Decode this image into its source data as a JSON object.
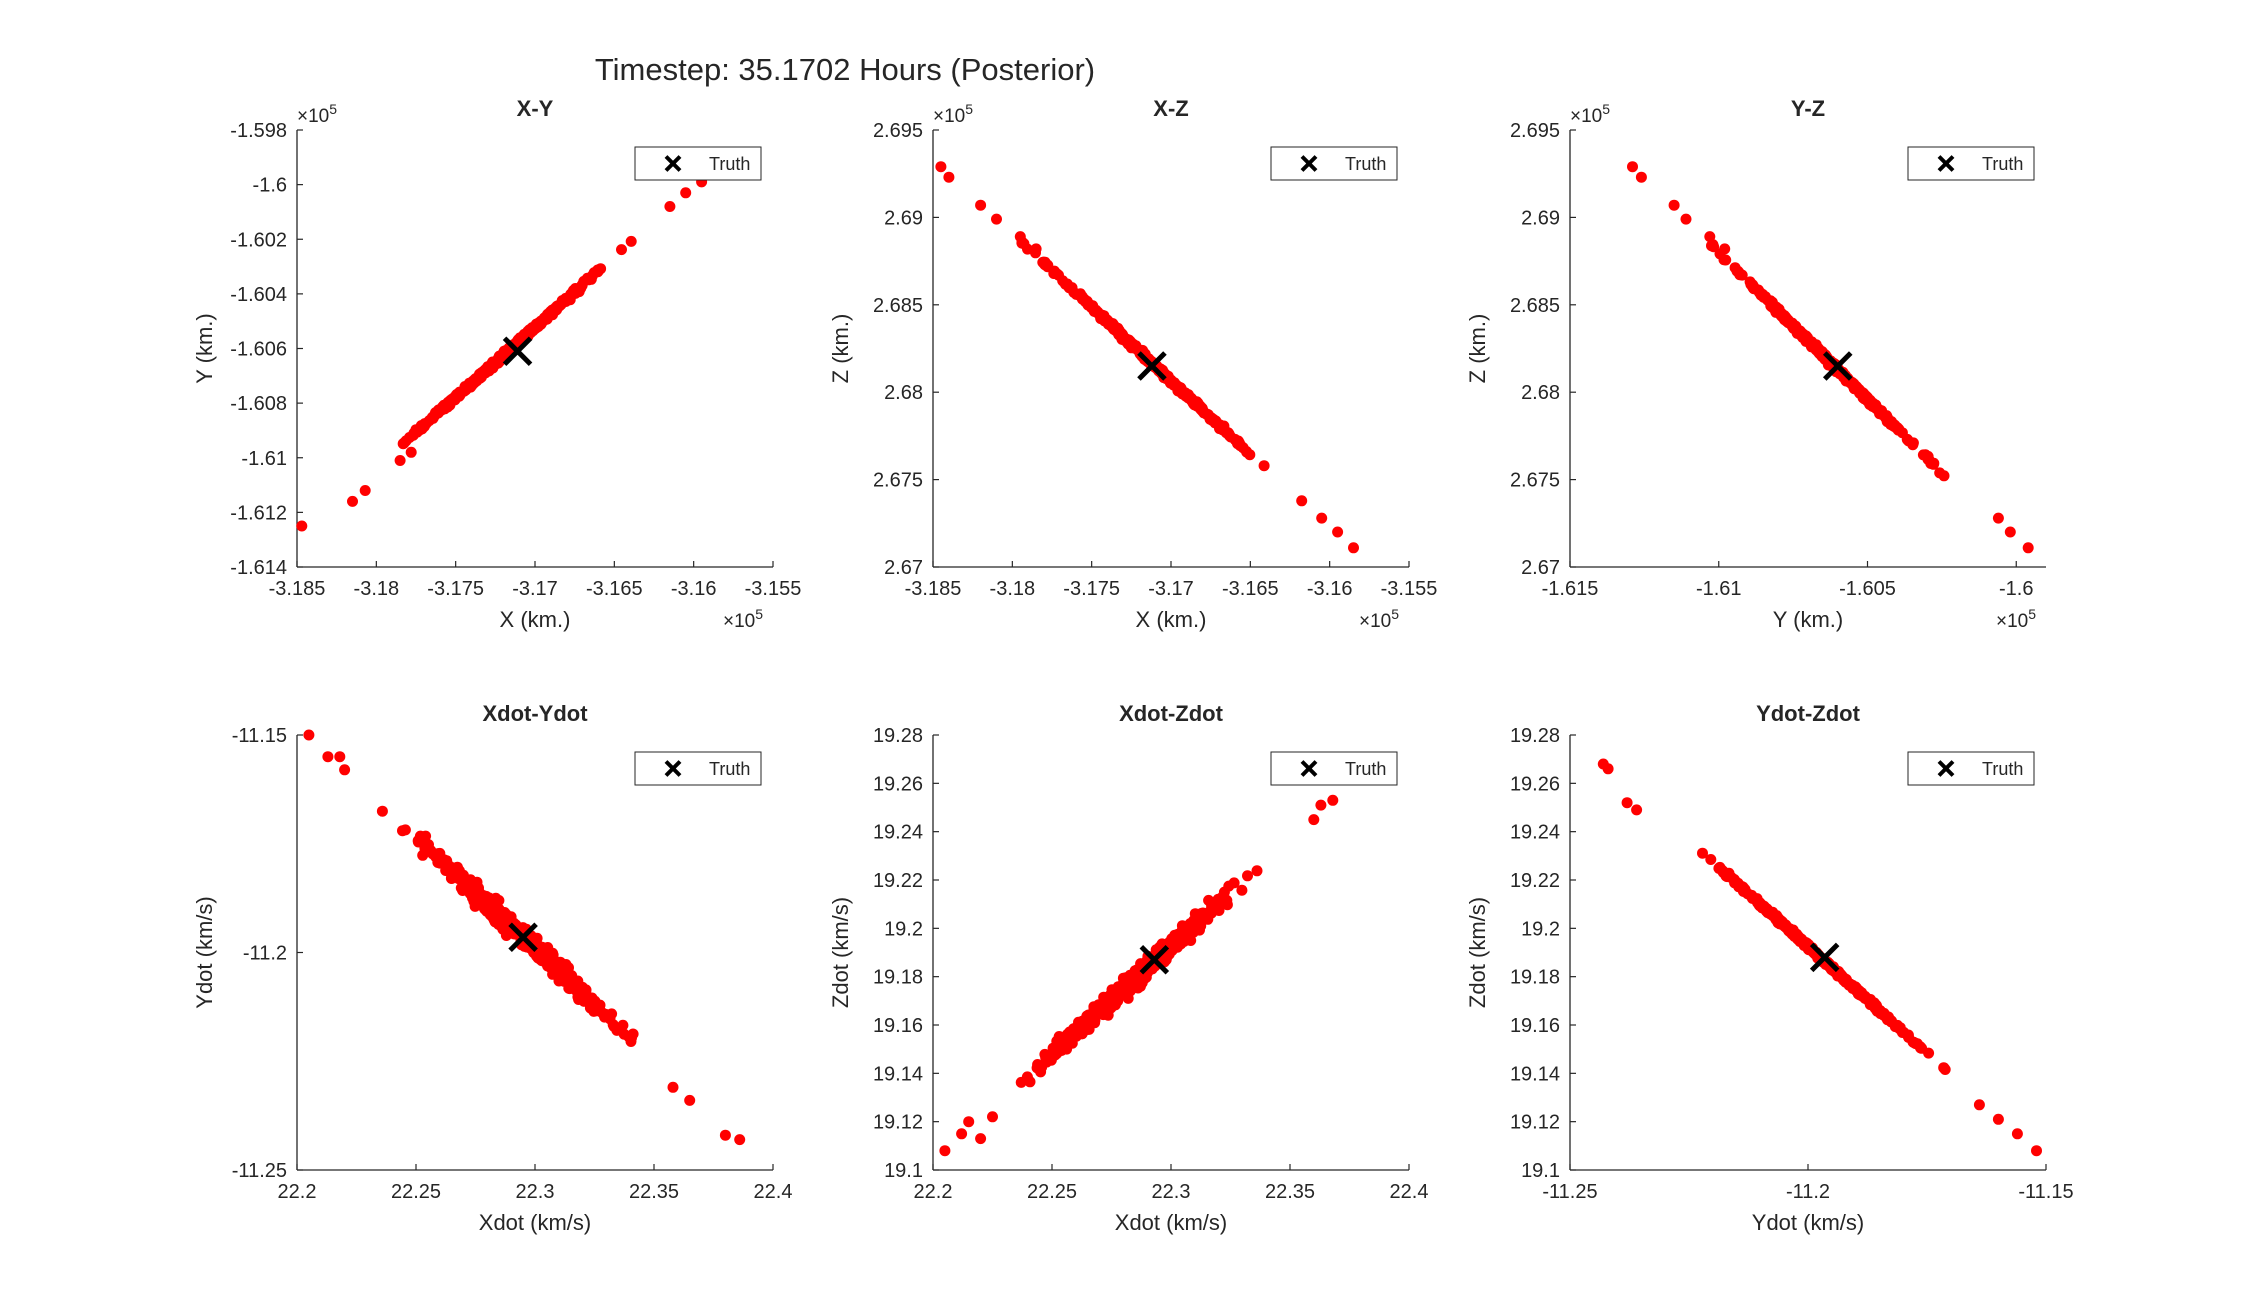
{
  "figure": {
    "title": "Timestep: 35.1702 Hours (Posterior)"
  },
  "colors": {
    "samples": "#ff0000",
    "truth": "#000000",
    "axis": "#262626"
  },
  "icons": {
    "truth_marker": "x-marker-icon"
  },
  "chart_data": [
    {
      "type": "scatter",
      "title": "X-Y",
      "xlabel": "X (km.)",
      "ylabel": "Y (km.)",
      "xlim": [
        -318500,
        -315500
      ],
      "ylim": [
        -161400,
        -159800
      ],
      "xticks": [
        -318500,
        -318000,
        -317500,
        -317000,
        -316500,
        -316000,
        -315500
      ],
      "xtick_labels": [
        "-3.185",
        "-3.18",
        "-3.175",
        "-3.17",
        "-3.165",
        "-3.16",
        "-3.155"
      ],
      "yticks": [
        -161400,
        -161200,
        -161000,
        -160800,
        -160600,
        -160400,
        -160200,
        -160000,
        -159800
      ],
      "ytick_labels": [
        "-1.614",
        "-1.612",
        "-1.61",
        "-1.608",
        "-1.606",
        "-1.604",
        "-1.602",
        "-1.6",
        "-1.598"
      ],
      "x_exponent": "×10",
      "x_exponent_power": "5",
      "y_exponent": "×10",
      "y_exponent_power": "5",
      "truth": [
        -317110,
        -160610
      ],
      "line": {
        "from": [
          -318500,
          -161290
        ],
        "to": [
          -315900,
          -159960
        ]
      },
      "outliers": [
        [
          -318470,
          -161250
        ],
        [
          -318150,
          -161160
        ],
        [
          -318070,
          -161120
        ],
        [
          -317850,
          -161010
        ],
        [
          -317780,
          -160980
        ],
        [
          -315950,
          -159990
        ],
        [
          -316050,
          -160030
        ],
        [
          -316150,
          -160080
        ]
      ],
      "spread": 25,
      "series": [
        {
          "name": "",
          "points": []
        }
      ],
      "legend": {
        "entries": [
          "Truth"
        ],
        "position": "top-right"
      }
    },
    {
      "type": "scatter",
      "title": "X-Z",
      "xlabel": "X (km.)",
      "ylabel": "Z (km.)",
      "xlim": [
        -318500,
        -315500
      ],
      "ylim": [
        267000,
        269500
      ],
      "xticks": [
        -318500,
        -318000,
        -317500,
        -317000,
        -316500,
        -316000,
        -315500
      ],
      "xtick_labels": [
        "-3.185",
        "-3.18",
        "-3.175",
        "-3.17",
        "-3.165",
        "-3.16",
        "-3.155"
      ],
      "yticks": [
        267000,
        267500,
        268000,
        268500,
        269000,
        269500
      ],
      "ytick_labels": [
        "2.67",
        "2.675",
        "2.68",
        "2.685",
        "2.69",
        "2.695"
      ],
      "x_exponent": "×10",
      "x_exponent_power": "5",
      "y_exponent": "×10",
      "y_exponent_power": "5",
      "truth": [
        -317120,
        268150
      ],
      "line": {
        "from": [
          -318450,
          269290
        ],
        "to": [
          -315800,
          267050
        ]
      },
      "outliers": [
        [
          -318450,
          269290
        ],
        [
          -318400,
          269230
        ],
        [
          -318200,
          269070
        ],
        [
          -318100,
          268990
        ],
        [
          -317950,
          268890
        ],
        [
          -317850,
          268820
        ],
        [
          -316050,
          267280
        ],
        [
          -315950,
          267200
        ],
        [
          -315850,
          267110
        ]
      ],
      "spread": 25,
      "series": [
        {
          "name": "",
          "points": []
        }
      ],
      "legend": {
        "entries": [
          "Truth"
        ],
        "position": "top-right"
      }
    },
    {
      "type": "scatter",
      "title": "Y-Z",
      "xlabel": "Y (km.)",
      "ylabel": "Z (km.)",
      "xlim": [
        -161500,
        -159900
      ],
      "ylim": [
        267000,
        269500
      ],
      "xticks": [
        -161500,
        -161000,
        -160500,
        -160000
      ],
      "xtick_labels": [
        "-1.615",
        "-1.61",
        "-1.605",
        "-1.6"
      ],
      "yticks": [
        267000,
        267500,
        268000,
        268500,
        269000,
        269500
      ],
      "ytick_labels": [
        "2.67",
        "2.675",
        "2.68",
        "2.685",
        "2.69",
        "2.695"
      ],
      "x_exponent": "×10",
      "x_exponent_power": "5",
      "y_exponent": "×10",
      "y_exponent_power": "5",
      "truth": [
        -160600,
        268150
      ],
      "line": {
        "from": [
          -161290,
          269290
        ],
        "to": [
          -159960,
          267050
        ]
      },
      "outliers": [
        [
          -161290,
          269290
        ],
        [
          -161260,
          269230
        ],
        [
          -161150,
          269070
        ],
        [
          -161110,
          268990
        ],
        [
          -161030,
          268890
        ],
        [
          -160980,
          268820
        ],
        [
          -160060,
          267280
        ],
        [
          -160020,
          267200
        ],
        [
          -159960,
          267110
        ]
      ],
      "spread": 25,
      "series": [
        {
          "name": "",
          "points": []
        }
      ],
      "legend": {
        "entries": [
          "Truth"
        ],
        "position": "top-right"
      }
    },
    {
      "type": "scatter",
      "title": "Xdot-Ydot",
      "xlabel": "Xdot (km/s)",
      "ylabel": "Ydot (km/s)",
      "xlim": [
        22.2,
        22.4
      ],
      "ylim": [
        -11.25,
        -11.15
      ],
      "xticks": [
        22.2,
        22.25,
        22.3,
        22.35,
        22.4
      ],
      "xtick_labels": [
        "22.2",
        "22.25",
        "22.3",
        "22.35",
        "22.4"
      ],
      "yticks": [
        -11.25,
        -11.2,
        -11.15
      ],
      "ytick_labels": [
        "-11.25",
        "-11.2",
        "-11.15"
      ],
      "truth": [
        22.295,
        -11.1965
      ],
      "line": {
        "from": [
          22.205,
          -11.15
        ],
        "to": [
          22.385,
          -11.243
        ]
      },
      "outliers": [
        [
          22.205,
          -11.15
        ],
        [
          22.213,
          -11.155
        ],
        [
          22.218,
          -11.155
        ],
        [
          22.22,
          -11.158
        ],
        [
          22.358,
          -11.231
        ],
        [
          22.365,
          -11.234
        ],
        [
          22.38,
          -11.242
        ],
        [
          22.386,
          -11.243
        ]
      ],
      "spread": 95,
      "series": [
        {
          "name": "",
          "points": []
        }
      ],
      "legend": {
        "entries": [
          "Truth"
        ],
        "position": "top-right"
      }
    },
    {
      "type": "scatter",
      "title": "Xdot-Zdot",
      "xlabel": "Xdot (km/s)",
      "ylabel": "Zdot (km/s)",
      "xlim": [
        22.2,
        22.4
      ],
      "ylim": [
        19.1,
        19.28
      ],
      "xticks": [
        22.2,
        22.25,
        22.3,
        22.35,
        22.4
      ],
      "xtick_labels": [
        "22.2",
        "22.25",
        "22.3",
        "22.35",
        "22.4"
      ],
      "yticks": [
        19.1,
        19.12,
        19.14,
        19.16,
        19.18,
        19.2,
        19.22,
        19.24,
        19.26,
        19.28
      ],
      "ytick_labels": [
        "19.1",
        "19.12",
        "19.14",
        "19.16",
        "19.18",
        "19.2",
        "19.22",
        "19.24",
        "19.26",
        "19.28"
      ],
      "truth": [
        22.293,
        19.187
      ],
      "line": {
        "from": [
          22.205,
          19.108
        ],
        "to": [
          22.368,
          19.253
        ]
      },
      "outliers": [
        [
          22.205,
          19.108
        ],
        [
          22.212,
          19.115
        ],
        [
          22.215,
          19.12
        ],
        [
          22.22,
          19.113
        ],
        [
          22.225,
          19.122
        ],
        [
          22.36,
          19.245
        ],
        [
          22.368,
          19.253
        ],
        [
          22.363,
          19.251
        ]
      ],
      "spread": 95,
      "series": [
        {
          "name": "",
          "points": []
        }
      ],
      "legend": {
        "entries": [
          "Truth"
        ],
        "position": "top-right"
      }
    },
    {
      "type": "scatter",
      "title": "Ydot-Zdot",
      "xlabel": "Ydot (km/s)",
      "ylabel": "Zdot (km/s)",
      "xlim": [
        -11.25,
        -11.15
      ],
      "ylim": [
        19.1,
        19.28
      ],
      "xticks": [
        -11.25,
        -11.2,
        -11.15
      ],
      "xtick_labels": [
        "-11.25",
        "-11.2",
        "-11.15"
      ],
      "yticks": [
        19.1,
        19.12,
        19.14,
        19.16,
        19.18,
        19.2,
        19.22,
        19.24,
        19.26,
        19.28
      ],
      "ytick_labels": [
        "19.1",
        "19.12",
        "19.14",
        "19.16",
        "19.18",
        "19.2",
        "19.22",
        "19.24",
        "19.26",
        "19.28"
      ],
      "truth": [
        -11.1965,
        19.188
      ],
      "line": {
        "from": [
          -11.243,
          19.268
        ],
        "to": [
          -11.152,
          19.108
        ]
      },
      "outliers": [
        [
          -11.243,
          19.268
        ],
        [
          -11.242,
          19.266
        ],
        [
          -11.238,
          19.252
        ],
        [
          -11.236,
          19.249
        ],
        [
          -11.164,
          19.127
        ],
        [
          -11.16,
          19.121
        ],
        [
          -11.156,
          19.115
        ],
        [
          -11.152,
          19.108
        ]
      ],
      "spread": 25,
      "series": [
        {
          "name": "",
          "points": []
        }
      ],
      "legend": {
        "entries": [
          "Truth"
        ],
        "position": "top-right"
      }
    }
  ]
}
